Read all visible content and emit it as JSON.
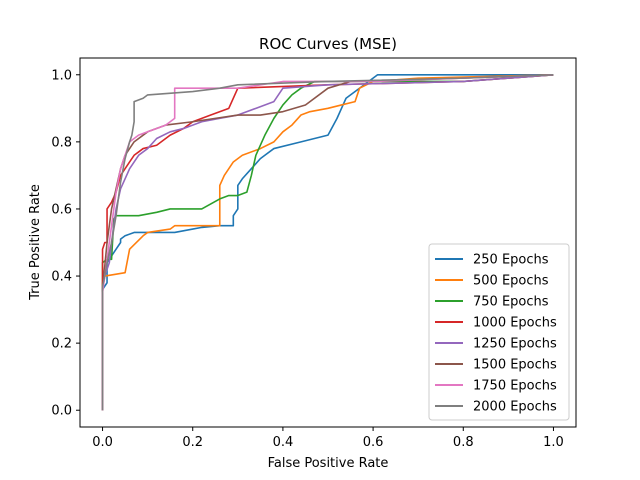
{
  "chart_data": {
    "type": "line",
    "title": "ROC Curves (MSE)",
    "xlabel": "False Positive Rate",
    "ylabel": "True Positive Rate",
    "xlim": [
      -0.05,
      1.05
    ],
    "ylim": [
      -0.05,
      1.05
    ],
    "xticks": [
      0.0,
      0.2,
      0.4,
      0.6,
      0.8,
      1.0
    ],
    "yticks": [
      0.0,
      0.2,
      0.4,
      0.6,
      0.8,
      1.0
    ],
    "xtick_labels": [
      "0.0",
      "0.2",
      "0.4",
      "0.6",
      "0.8",
      "1.0"
    ],
    "ytick_labels": [
      "0.0",
      "0.2",
      "0.4",
      "0.6",
      "0.8",
      "1.0"
    ],
    "grid": false,
    "legend_position": "lower-right",
    "series": [
      {
        "name": "250 Epochs",
        "color": "#1f77b4",
        "x": [
          0.0,
          0.0,
          0.01,
          0.01,
          0.02,
          0.03,
          0.04,
          0.04,
          0.05,
          0.07,
          0.16,
          0.2,
          0.22,
          0.26,
          0.29,
          0.29,
          0.3,
          0.3,
          0.31,
          0.33,
          0.35,
          0.36,
          0.38,
          0.44,
          0.5,
          0.52,
          0.53,
          0.54,
          0.55,
          0.58,
          0.61,
          0.8,
          1.0
        ],
        "y": [
          0.0,
          0.36,
          0.38,
          0.44,
          0.46,
          0.48,
          0.5,
          0.51,
          0.52,
          0.53,
          0.53,
          0.54,
          0.545,
          0.55,
          0.55,
          0.58,
          0.6,
          0.67,
          0.69,
          0.72,
          0.75,
          0.76,
          0.78,
          0.8,
          0.82,
          0.87,
          0.9,
          0.93,
          0.94,
          0.97,
          1.0,
          1.0,
          1.0
        ]
      },
      {
        "name": "500 Epochs",
        "color": "#ff7f0e",
        "x": [
          0.0,
          0.0,
          0.005,
          0.05,
          0.06,
          0.09,
          0.1,
          0.15,
          0.16,
          0.26,
          0.26,
          0.27,
          0.29,
          0.31,
          0.35,
          0.38,
          0.4,
          0.42,
          0.44,
          0.46,
          0.5,
          0.53,
          0.56,
          0.57,
          0.6,
          0.7,
          1.0
        ],
        "y": [
          0.0,
          0.38,
          0.4,
          0.41,
          0.48,
          0.52,
          0.53,
          0.54,
          0.55,
          0.55,
          0.67,
          0.7,
          0.74,
          0.76,
          0.78,
          0.8,
          0.83,
          0.85,
          0.88,
          0.89,
          0.9,
          0.91,
          0.92,
          0.96,
          0.98,
          0.99,
          1.0
        ]
      },
      {
        "name": "750 Epochs",
        "color": "#2ca02c",
        "x": [
          0.0,
          0.0,
          0.01,
          0.02,
          0.025,
          0.03,
          0.08,
          0.12,
          0.15,
          0.22,
          0.26,
          0.28,
          0.3,
          0.32,
          0.33,
          0.34,
          0.36,
          0.38,
          0.4,
          0.42,
          0.44,
          0.47,
          0.5,
          0.53,
          0.55,
          0.6,
          0.8,
          1.0
        ],
        "y": [
          0.0,
          0.44,
          0.45,
          0.45,
          0.57,
          0.58,
          0.58,
          0.59,
          0.6,
          0.6,
          0.63,
          0.64,
          0.64,
          0.65,
          0.7,
          0.76,
          0.82,
          0.87,
          0.91,
          0.94,
          0.96,
          0.98,
          0.98,
          0.98,
          0.98,
          0.98,
          0.98,
          1.0
        ]
      },
      {
        "name": "1000 Epochs",
        "color": "#d62728",
        "x": [
          0.0,
          0.0,
          0.005,
          0.01,
          0.01,
          0.015,
          0.02,
          0.03,
          0.04,
          0.06,
          0.07,
          0.08,
          0.09,
          0.12,
          0.15,
          0.18,
          0.2,
          0.22,
          0.24,
          0.28,
          0.3,
          0.5,
          0.8,
          1.0
        ],
        "y": [
          0.0,
          0.48,
          0.5,
          0.5,
          0.6,
          0.61,
          0.62,
          0.65,
          0.7,
          0.74,
          0.76,
          0.77,
          0.78,
          0.79,
          0.82,
          0.84,
          0.86,
          0.87,
          0.88,
          0.9,
          0.96,
          0.97,
          0.98,
          1.0
        ]
      },
      {
        "name": "1250 Epochs",
        "color": "#9467bd",
        "x": [
          0.0,
          0.0,
          0.005,
          0.015,
          0.02,
          0.03,
          0.04,
          0.06,
          0.08,
          0.1,
          0.12,
          0.15,
          0.18,
          0.22,
          0.26,
          0.3,
          0.34,
          0.38,
          0.4,
          0.5,
          0.8,
          1.0
        ],
        "y": [
          0.0,
          0.36,
          0.4,
          0.44,
          0.5,
          0.6,
          0.66,
          0.72,
          0.76,
          0.78,
          0.81,
          0.83,
          0.84,
          0.86,
          0.87,
          0.88,
          0.9,
          0.92,
          0.96,
          0.97,
          0.98,
          1.0
        ]
      },
      {
        "name": "1500 Epochs",
        "color": "#8c564b",
        "x": [
          0.0,
          0.0,
          0.01,
          0.02,
          0.03,
          0.04,
          0.05,
          0.07,
          0.1,
          0.14,
          0.2,
          0.25,
          0.3,
          0.35,
          0.4,
          0.45,
          0.5,
          0.55,
          0.8,
          1.0
        ],
        "y": [
          0.0,
          0.36,
          0.5,
          0.6,
          0.66,
          0.72,
          0.76,
          0.8,
          0.83,
          0.85,
          0.86,
          0.87,
          0.88,
          0.88,
          0.89,
          0.91,
          0.96,
          0.98,
          0.99,
          1.0
        ]
      },
      {
        "name": "1750 Epochs",
        "color": "#e377c2",
        "x": [
          0.0,
          0.0,
          0.005,
          0.01,
          0.02,
          0.03,
          0.04,
          0.05,
          0.06,
          0.08,
          0.1,
          0.12,
          0.14,
          0.15,
          0.16,
          0.16,
          0.3,
          0.4,
          0.6,
          0.8,
          1.0
        ],
        "y": [
          0.0,
          0.35,
          0.4,
          0.45,
          0.55,
          0.65,
          0.72,
          0.76,
          0.8,
          0.82,
          0.83,
          0.84,
          0.85,
          0.86,
          0.87,
          0.96,
          0.96,
          0.98,
          0.98,
          0.99,
          1.0
        ]
      },
      {
        "name": "2000 Epochs",
        "color": "#7f7f7f",
        "x": [
          0.0,
          0.0,
          0.005,
          0.01,
          0.02,
          0.03,
          0.04,
          0.05,
          0.06,
          0.065,
          0.07,
          0.07,
          0.09,
          0.1,
          0.2,
          0.26,
          0.3,
          0.5,
          0.8,
          1.0
        ],
        "y": [
          0.0,
          0.37,
          0.4,
          0.44,
          0.5,
          0.58,
          0.68,
          0.75,
          0.8,
          0.82,
          0.86,
          0.92,
          0.93,
          0.94,
          0.95,
          0.96,
          0.97,
          0.98,
          0.99,
          1.0
        ]
      }
    ]
  }
}
